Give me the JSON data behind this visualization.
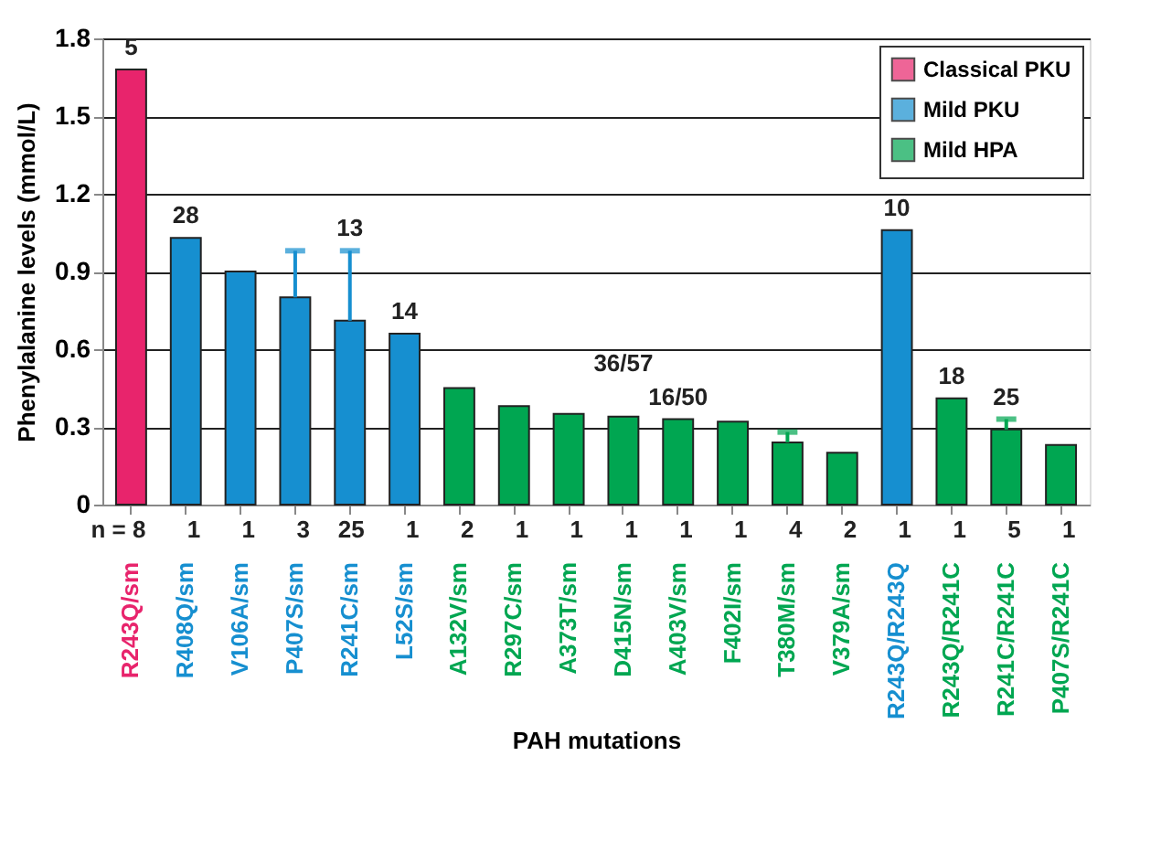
{
  "chart_data": {
    "type": "bar",
    "xlabel": "PAH mutations",
    "ylabel": "Phenylalanine levels (mmol/L)",
    "categories": [
      "R243Q/sm",
      "R408Q/sm",
      "V106A/sm",
      "P407S/sm",
      "R241C/sm",
      "L52S/sm",
      "A132V/sm",
      "R297C/sm",
      "A373T/sm",
      "D415N/sm",
      "A403V/sm",
      "F402I/sm",
      "T380M/sm",
      "V379A/sm",
      "R243Q/R243Q",
      "R243Q/R241C",
      "R241C/R241C",
      "P407S/R241C"
    ],
    "series": [
      {
        "name": "Classical PKU",
        "color": "#e8246c",
        "values": [
          1.68,
          null,
          null,
          null,
          null,
          null,
          null,
          null,
          null,
          null,
          null,
          null,
          null,
          null,
          null,
          null,
          null,
          null
        ]
      },
      {
        "name": "Mild PKU",
        "color": "#168fd0",
        "values": [
          null,
          1.03,
          0.9,
          0.8,
          0.71,
          0.66,
          null,
          null,
          null,
          null,
          null,
          null,
          null,
          null,
          1.06,
          null,
          null,
          null
        ],
        "errors": [
          null,
          null,
          null,
          [
            0.8,
            0.98
          ],
          [
            0.71,
            0.98
          ],
          null,
          null,
          null,
          null,
          null,
          null,
          null,
          null,
          null,
          null,
          null,
          null,
          null
        ]
      },
      {
        "name": "Mild HPA",
        "color": "#00a651",
        "values": [
          null,
          null,
          null,
          null,
          null,
          null,
          0.45,
          0.38,
          0.35,
          0.34,
          0.33,
          0.32,
          0.24,
          0.2,
          null,
          0.41,
          0.29,
          0.23
        ],
        "errors": [
          null,
          null,
          null,
          null,
          null,
          null,
          null,
          null,
          null,
          null,
          null,
          null,
          [
            0.24,
            0.28
          ],
          null,
          null,
          null,
          [
            0.29,
            0.33
          ],
          null
        ]
      }
    ],
    "ylim": [
      0,
      1.8
    ],
    "yticks": [
      0,
      0.3,
      0.6,
      0.9,
      1.2,
      1.5,
      1.8
    ],
    "grid": "y",
    "legend": "top right",
    "annotations": [
      {
        "text": "5",
        "x": "R243Q/sm",
        "y": 1.68
      },
      {
        "text": "28",
        "x": "R408Q/sm",
        "y": 1.03
      },
      {
        "text": "13",
        "x": "R241C/sm",
        "y": 0.98
      },
      {
        "text": "14",
        "x": "L52S/sm",
        "y": 0.66
      },
      {
        "text": "36/57",
        "x": "D415N/sm",
        "y": 0.34
      },
      {
        "text": "16/50",
        "x": "A403V/sm",
        "y": 0.33
      },
      {
        "text": "10",
        "x": "R243Q/R243Q",
        "y": 1.06
      },
      {
        "text": "18",
        "x": "R243Q/R241C",
        "y": 0.41
      },
      {
        "text": "25",
        "x": "R241C/R241C",
        "y": 0.29
      },
      "n = 8",
      "1",
      "1",
      "3",
      "25",
      "1",
      "2",
      "1",
      "1",
      "1",
      "1",
      "1",
      "4",
      "2",
      "1",
      "1",
      "5",
      "1"
    ]
  }
}
